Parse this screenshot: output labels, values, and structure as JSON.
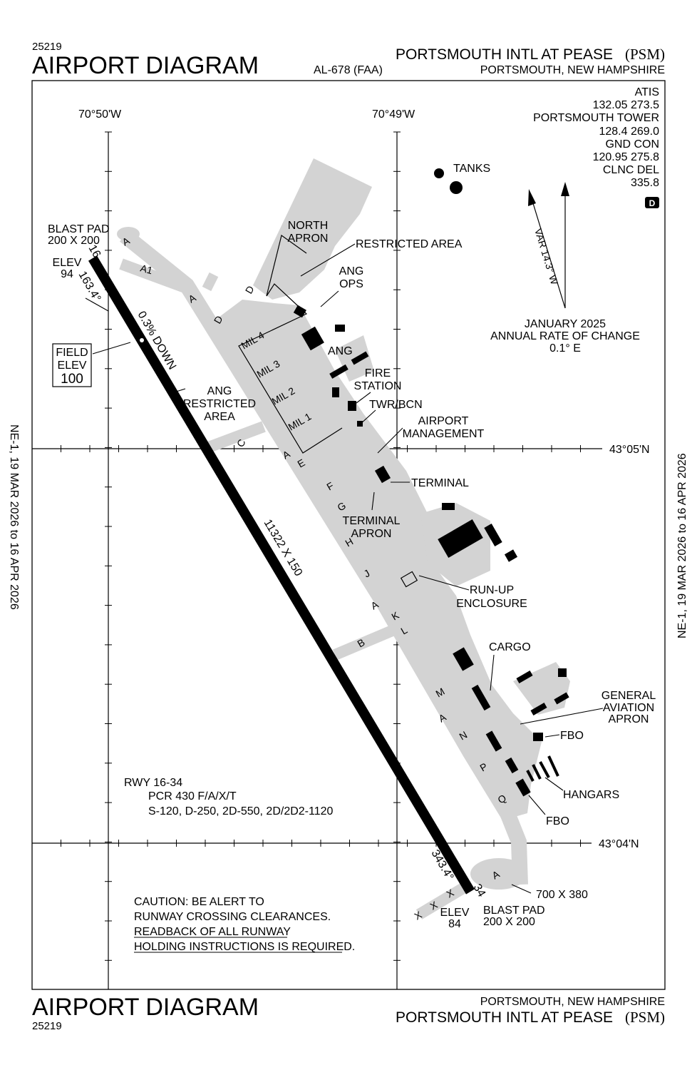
{
  "header": {
    "procedure_number": "25219",
    "title": "AIRPORT DIAGRAM",
    "chart_id": "AL-678 (FAA)",
    "airport_name": "PORTSMOUTH INTL AT PEASE",
    "airport_ident": "(PSM)",
    "location": "PORTSMOUTH, NEW HAMPSHIRE"
  },
  "footer": {
    "title": "AIRPORT DIAGRAM",
    "procedure_number": "25219",
    "location": "PORTSMOUTH, NEW HAMPSHIRE",
    "airport_name": "PORTSMOUTH INTL AT PEASE",
    "airport_ident": "(PSM)"
  },
  "margin": {
    "left": "NE-1,  19 MAR 2026  to  16 APR 2026",
    "right": "NE-1,  19 MAR 2026  to  16 APR 2026"
  },
  "coordinates": {
    "lon_west": "70°50'W",
    "lon_east": "70°49'W",
    "lat_north": "43°05'N",
    "lat_south": "43°04'N"
  },
  "frequencies": {
    "atis_label": "ATIS",
    "atis": "132.05  273.5",
    "tower_label": "PORTSMOUTH TOWER",
    "tower": "128.4  269.0",
    "ground_label": "GND CON",
    "ground": "120.95  275.8",
    "clearance_label": "CLNC DEL",
    "clearance": "335.8",
    "badge": "D"
  },
  "magnetic": {
    "variation": "VAR 14.3° W",
    "date": "JANUARY 2025",
    "rate_label": "ANNUAL RATE OF CHANGE",
    "rate": "0.1° E"
  },
  "runway": {
    "dimensions": "11322 X 150",
    "gradient": "0.3% DOWN",
    "north_end": "16",
    "south_end": "34",
    "north_heading": "163.4°",
    "south_heading": "343.4°",
    "north_elev_label": "ELEV",
    "north_elev": "94",
    "south_elev_label": "ELEV",
    "south_elev": "84",
    "north_blast_pad": [
      "BLAST PAD",
      "200 X 200"
    ],
    "south_blast_pad": [
      "BLAST PAD",
      "200 X 200"
    ],
    "south_pad": "700 X 380",
    "field_elev": [
      "FIELD",
      "ELEV",
      "100"
    ]
  },
  "runway_info": {
    "runway": "RWY 16-34",
    "pcr": "PCR 430 F/A/X/T",
    "weights": "S-120, D-250, 2D-550, 2D/2D2-1120"
  },
  "caution": {
    "line1": "CAUTION: BE ALERT TO",
    "line2": "RUNWAY CROSSING CLEARANCES.",
    "line3": "READBACK OF ALL RUNWAY",
    "line4": "HOLDING INSTRUCTIONS IS REQUIRED."
  },
  "labels": {
    "tanks": "TANKS",
    "north_apron": [
      "NORTH",
      "APRON"
    ],
    "restricted_area": "RESTRICTED AREA",
    "ang_ops": [
      "ANG",
      "OPS"
    ],
    "ang": "ANG",
    "fire_station": [
      "FIRE",
      "STATION"
    ],
    "twr_bcn": "TWR/BCN",
    "airport_management": [
      "AIRPORT",
      "MANAGEMENT"
    ],
    "ang_restricted_area": [
      "ANG",
      "RESTRICTED",
      "AREA"
    ],
    "terminal": "TERMINAL",
    "terminal_apron": [
      "TERMINAL",
      "APRON"
    ],
    "runup_enclosure": [
      "RUN-UP",
      "ENCLOSURE"
    ],
    "cargo": "CARGO",
    "ga_apron": [
      "GENERAL",
      "AVIATION",
      "APRON"
    ],
    "fbo_1": "FBO",
    "fbo_2": "FBO",
    "hangars": "HANGARS",
    "mil": [
      "MIL 4",
      "MIL 3",
      "MIL 2",
      "MIL 1"
    ]
  },
  "taxiways": {
    "a_north": "A",
    "a1": "A1",
    "a_mid": "A",
    "d1": "D",
    "d2": "D",
    "c": "C",
    "a_c": "A",
    "e": "E",
    "f": "F",
    "g": "G",
    "h": "H",
    "j": "J",
    "a_k": "A",
    "k": "K",
    "b": "B",
    "l": "L",
    "m": "M",
    "a_m": "A",
    "n": "N",
    "p": "P",
    "q": "Q",
    "a_south": "A",
    "x1": "X",
    "x2": "X",
    "x3": "X"
  }
}
